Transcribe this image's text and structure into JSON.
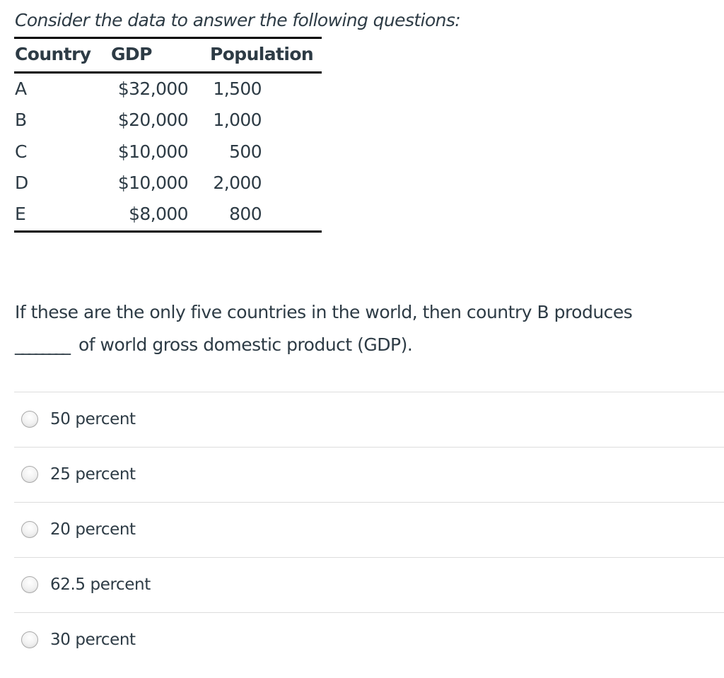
{
  "intro": "Consider the data to answer the following questions:",
  "table": {
    "headers": [
      "Country",
      "GDP",
      "Population"
    ],
    "rows": [
      {
        "country": "A",
        "gdp": "$32,000",
        "population": "1,500"
      },
      {
        "country": "B",
        "gdp": "$20,000",
        "population": "1,000"
      },
      {
        "country": "C",
        "gdp": "$10,000",
        "population": "500"
      },
      {
        "country": "D",
        "gdp": "$10,000",
        "population": "2,000"
      },
      {
        "country": "E",
        "gdp": "$8,000",
        "population": "800"
      }
    ]
  },
  "question": {
    "line1": "If these are the only five countries in the world, then country B produces",
    "blank": "________",
    "line2": "of world gross domestic product (GDP)."
  },
  "options": [
    {
      "label": "50 percent",
      "selected": false
    },
    {
      "label": "25 percent",
      "selected": false
    },
    {
      "label": "20 percent",
      "selected": false
    },
    {
      "label": "62.5 percent",
      "selected": false
    },
    {
      "label": "30 percent",
      "selected": false
    }
  ]
}
